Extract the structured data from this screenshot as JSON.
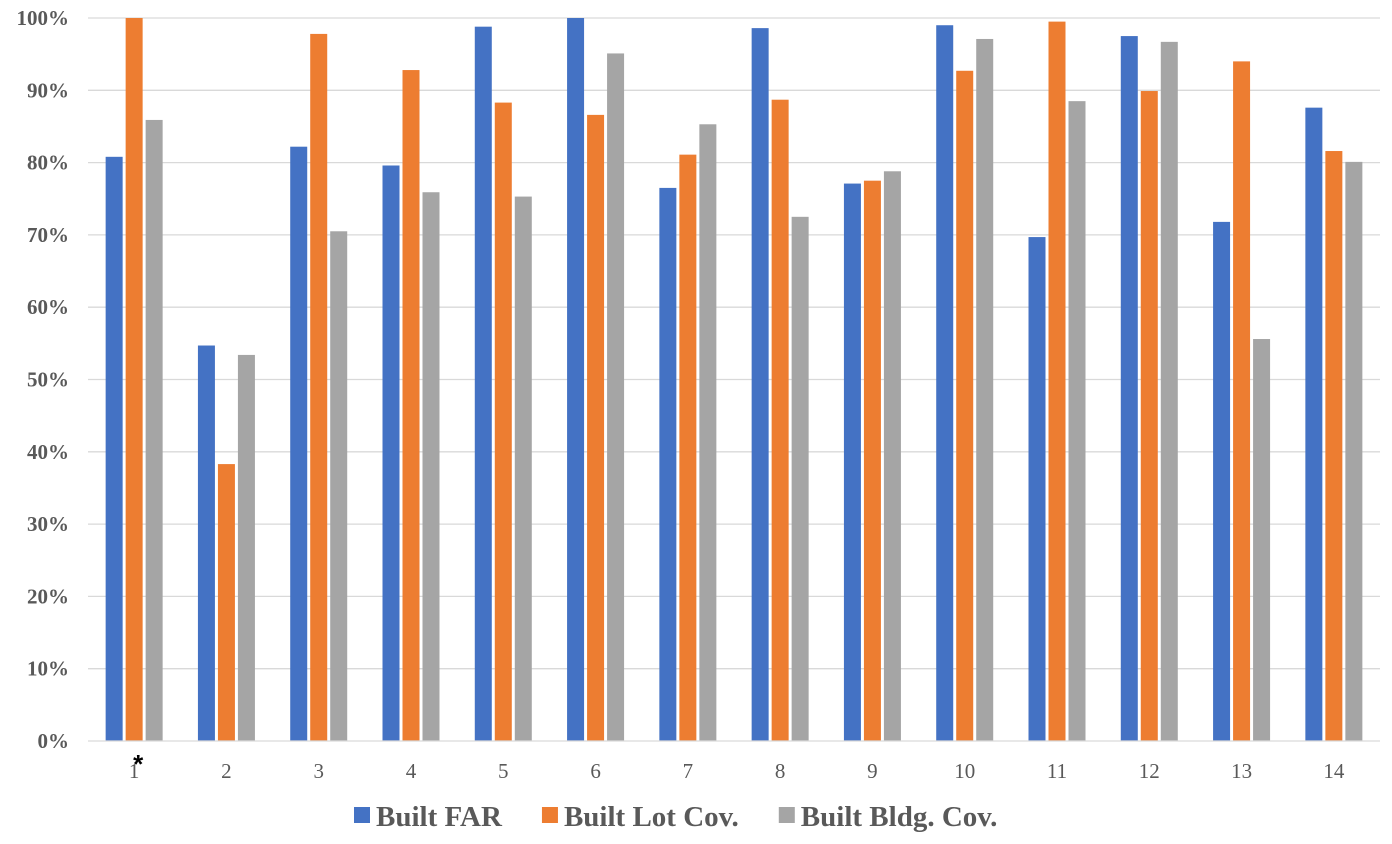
{
  "chart_data": {
    "type": "bar",
    "title": "",
    "xlabel": "",
    "ylabel": "",
    "categories": [
      "1",
      "2",
      "3",
      "4",
      "5",
      "6",
      "7",
      "8",
      "9",
      "10",
      "11",
      "12",
      "13",
      "14"
    ],
    "category_note": {
      "category": "1",
      "mark": "*"
    },
    "ylim": [
      0,
      100
    ],
    "ytick_step": 10,
    "ytick_labels": [
      "0%",
      "10%",
      "20%",
      "30%",
      "40%",
      "50%",
      "60%",
      "70%",
      "80%",
      "90%",
      "100%"
    ],
    "grid": true,
    "legend_position": "bottom",
    "series": [
      {
        "name": "Built FAR",
        "color": "#4472C4",
        "values": [
          80.8,
          54.7,
          82.2,
          79.6,
          98.8,
          100,
          76.5,
          98.6,
          77.1,
          99,
          69.7,
          97.5,
          71.8,
          87.6
        ]
      },
      {
        "name": "Built Lot Cov.",
        "color": "#ED7D31",
        "values": [
          100,
          38.3,
          97.8,
          92.8,
          88.3,
          86.6,
          81.1,
          88.7,
          77.5,
          92.7,
          99.5,
          89.9,
          94,
          81.6
        ]
      },
      {
        "name": "Built Bldg. Cov.",
        "color": "#A5A5A5",
        "values": [
          85.9,
          53.4,
          70.5,
          75.9,
          75.3,
          95.1,
          85.3,
          72.5,
          78.8,
          97.1,
          88.5,
          96.7,
          55.6,
          80.1
        ]
      }
    ]
  }
}
